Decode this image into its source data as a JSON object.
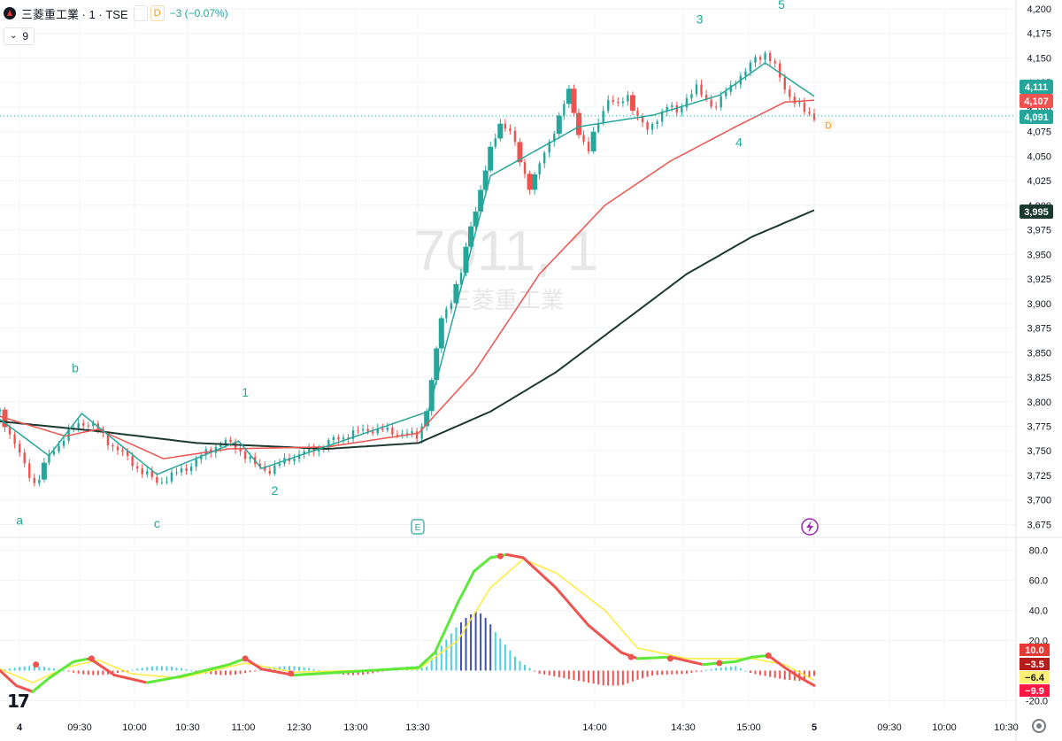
{
  "header": {
    "title": "三菱重工業 · 1 · TSE",
    "badge_a": "",
    "badge_d": "D",
    "change": "−3 (−0.07%)"
  },
  "indicator": {
    "label": "9"
  },
  "watermark": {
    "line1": "7011, 1",
    "line2": "三菱重工業"
  },
  "colors": {
    "up": "#26a69a",
    "down": "#ef5350",
    "ma_short": "#26a69a",
    "ma_mid": "#ef5350",
    "ma_long": "#1b3a2f",
    "k_line": "#5ee83a",
    "d_line": "#ffeb3b",
    "macd_line": "#ef5350",
    "hist_up": "#4dd0e1",
    "hist_up2": "#3f51b5",
    "hist_down": "#ef5350",
    "grid": "#f0f3fa"
  },
  "chart_data": [
    {
      "type": "candlestick",
      "title": "",
      "ylim": [
        3670,
        4200
      ],
      "y_ticks": [
        3675,
        3700,
        3725,
        3750,
        3775,
        3800,
        3825,
        3850,
        3875,
        3900,
        3925,
        3950,
        3975,
        4000,
        4025,
        4050,
        4075,
        4100,
        4125,
        4150,
        4175,
        4200
      ],
      "x_ticks": [
        "4",
        "09:30",
        "10:00",
        "10:30",
        "11:00",
        "12:30",
        "13:00",
        "13:30",
        "14:00",
        "14:30",
        "15:00",
        "5",
        "09:30",
        "10:00",
        "10:30"
      ],
      "price_labels": [
        {
          "label": "4,111",
          "value": 4111,
          "color": "#26a69a"
        },
        {
          "label": "4,107",
          "value": 4107,
          "color": "#ef5350"
        },
        {
          "label": "4,091",
          "value": 4091,
          "color": "#26a69a"
        },
        {
          "label": "3,995",
          "value": 3995,
          "color": "#1b3a2f"
        }
      ],
      "wave_labels": [
        {
          "text": "a",
          "x": "09:10",
          "y": 3675
        },
        {
          "text": "b",
          "x": "09:25",
          "y": 3830
        },
        {
          "text": "c",
          "x": "10:15",
          "y": 3672
        },
        {
          "text": "1",
          "x": "10:55",
          "y": 3805
        },
        {
          "text": "2",
          "x": "11:10",
          "y": 3705
        },
        {
          "text": "3",
          "x": "14:10",
          "y": 4185
        },
        {
          "text": "4",
          "x": "14:35",
          "y": 4060
        },
        {
          "text": "5",
          "x": "15:05",
          "y": 4200
        }
      ],
      "markers": [
        {
          "text": "E",
          "x": "13:30"
        },
        {
          "text": "D",
          "x": "15:30"
        }
      ],
      "price_path": [
        [
          0,
          3790
        ],
        [
          8,
          3760
        ],
        [
          15,
          3735
        ],
        [
          22,
          3715
        ],
        [
          30,
          3745
        ],
        [
          40,
          3765
        ],
        [
          50,
          3780
        ],
        [
          58,
          3775
        ],
        [
          66,
          3760
        ],
        [
          76,
          3745
        ],
        [
          86,
          3730
        ],
        [
          96,
          3718
        ],
        [
          106,
          3725
        ],
        [
          116,
          3735
        ],
        [
          126,
          3748
        ],
        [
          136,
          3760
        ],
        [
          146,
          3752
        ],
        [
          156,
          3735
        ],
        [
          166,
          3730
        ],
        [
          176,
          3742
        ],
        [
          186,
          3748
        ],
        [
          196,
          3755
        ],
        [
          206,
          3762
        ],
        [
          216,
          3768
        ],
        [
          226,
          3772
        ],
        [
          236,
          3770
        ],
        [
          246,
          3768
        ],
        [
          256,
          3764
        ],
        [
          262,
          3800
        ],
        [
          266,
          3840
        ],
        [
          270,
          3885
        ],
        [
          276,
          3905
        ],
        [
          282,
          3930
        ],
        [
          288,
          3980
        ],
        [
          294,
          4015
        ],
        [
          300,
          4055
        ],
        [
          306,
          4085
        ],
        [
          312,
          4075
        ],
        [
          318,
          4045
        ],
        [
          324,
          4020
        ],
        [
          330,
          4040
        ],
        [
          336,
          4065
        ],
        [
          342,
          4090
        ],
        [
          348,
          4115
        ],
        [
          354,
          4075
        ],
        [
          360,
          4055
        ],
        [
          366,
          4085
        ],
        [
          372,
          4110
        ],
        [
          378,
          4100
        ],
        [
          384,
          4112
        ],
        [
          390,
          4090
        ],
        [
          396,
          4075
        ],
        [
          402,
          4090
        ],
        [
          408,
          4100
        ],
        [
          414,
          4095
        ],
        [
          420,
          4110
        ],
        [
          426,
          4118
        ],
        [
          432,
          4108
        ],
        [
          438,
          4100
        ],
        [
          444,
          4115
        ],
        [
          450,
          4128
        ],
        [
          456,
          4135
        ],
        [
          462,
          4150
        ],
        [
          468,
          4155
        ],
        [
          474,
          4140
        ],
        [
          480,
          4120
        ],
        [
          486,
          4105
        ],
        [
          492,
          4095
        ],
        [
          498,
          4091
        ]
      ],
      "ma_short": [
        [
          0,
          3782
        ],
        [
          30,
          3745
        ],
        [
          50,
          3788
        ],
        [
          96,
          3726
        ],
        [
          146,
          3760
        ],
        [
          160,
          3732
        ],
        [
          262,
          3790
        ],
        [
          300,
          4030
        ],
        [
          354,
          4080
        ],
        [
          400,
          4092
        ],
        [
          440,
          4112
        ],
        [
          468,
          4145
        ],
        [
          498,
          4111
        ]
      ],
      "ma_mid": [
        [
          0,
          3785
        ],
        [
          40,
          3765
        ],
        [
          60,
          3772
        ],
        [
          100,
          3742
        ],
        [
          140,
          3752
        ],
        [
          200,
          3754
        ],
        [
          256,
          3768
        ],
        [
          290,
          3830
        ],
        [
          330,
          3930
        ],
        [
          370,
          4000
        ],
        [
          410,
          4045
        ],
        [
          450,
          4080
        ],
        [
          480,
          4105
        ],
        [
          498,
          4107
        ]
      ],
      "ma_long": [
        [
          0,
          3780
        ],
        [
          60,
          3770
        ],
        [
          120,
          3758
        ],
        [
          200,
          3752
        ],
        [
          256,
          3758
        ],
        [
          300,
          3790
        ],
        [
          340,
          3830
        ],
        [
          380,
          3880
        ],
        [
          420,
          3930
        ],
        [
          460,
          3968
        ],
        [
          498,
          3995
        ]
      ]
    },
    {
      "type": "oscillator",
      "title": "",
      "ylim": [
        -25,
        82
      ],
      "y_ticks": [
        80.0,
        60.0,
        40.0,
        20.0,
        -20.0
      ],
      "value_labels": [
        {
          "label": "10.0",
          "value": 10.0,
          "bg": "#e53935",
          "fg": "#ffffff"
        },
        {
          "label": "−3.5",
          "value": -3.5,
          "bg": "#b71c1c",
          "fg": "#ffffff"
        },
        {
          "label": "−6.4",
          "value": -6.4,
          "bg": "#fff176",
          "fg": "#131722"
        },
        {
          "label": "−9.9",
          "value": -9.9,
          "bg": "#ff1744",
          "fg": "#ffffff"
        }
      ],
      "k_line": [
        [
          0,
          0
        ],
        [
          10,
          -10
        ],
        [
          20,
          -14
        ],
        [
          30,
          -5
        ],
        [
          45,
          6
        ],
        [
          55,
          8
        ],
        [
          70,
          -3
        ],
        [
          90,
          -8
        ],
        [
          110,
          -4
        ],
        [
          140,
          4
        ],
        [
          150,
          8
        ],
        [
          160,
          1
        ],
        [
          180,
          -3
        ],
        [
          210,
          -1
        ],
        [
          256,
          2
        ],
        [
          266,
          12
        ],
        [
          280,
          45
        ],
        [
          290,
          66
        ],
        [
          300,
          75
        ],
        [
          310,
          77
        ],
        [
          320,
          75
        ],
        [
          340,
          55
        ],
        [
          360,
          30
        ],
        [
          380,
          12
        ],
        [
          390,
          8
        ],
        [
          410,
          9
        ],
        [
          430,
          4
        ],
        [
          450,
          6
        ],
        [
          460,
          9
        ],
        [
          470,
          10
        ],
        [
          480,
          2
        ],
        [
          490,
          -5
        ],
        [
          498,
          -9.9
        ]
      ],
      "d_line": [
        [
          0,
          1
        ],
        [
          20,
          -8
        ],
        [
          40,
          2
        ],
        [
          60,
          7
        ],
        [
          80,
          -2
        ],
        [
          110,
          -5
        ],
        [
          150,
          5
        ],
        [
          180,
          -1
        ],
        [
          256,
          1
        ],
        [
          280,
          20
        ],
        [
          300,
          55
        ],
        [
          320,
          74
        ],
        [
          340,
          65
        ],
        [
          370,
          40
        ],
        [
          390,
          15
        ],
        [
          420,
          8
        ],
        [
          460,
          8
        ],
        [
          480,
          4
        ],
        [
          498,
          -6.4
        ]
      ],
      "histogram": [
        [
          262,
          5
        ],
        [
          268,
          14
        ],
        [
          274,
          22
        ],
        [
          280,
          30
        ],
        [
          286,
          36
        ],
        [
          292,
          40
        ],
        [
          298,
          34
        ],
        [
          304,
          24
        ],
        [
          310,
          16
        ],
        [
          316,
          8
        ],
        [
          322,
          3
        ],
        [
          330,
          -2
        ],
        [
          340,
          -4
        ],
        [
          350,
          -6
        ],
        [
          360,
          -8
        ],
        [
          370,
          -10
        ],
        [
          380,
          -10
        ],
        [
          390,
          -6
        ],
        [
          400,
          -3
        ],
        [
          420,
          -2
        ],
        [
          440,
          2
        ],
        [
          450,
          3
        ],
        [
          460,
          -2
        ],
        [
          470,
          -4
        ],
        [
          480,
          -6
        ],
        [
          490,
          -7
        ],
        [
          498,
          -3.5
        ]
      ]
    }
  ]
}
